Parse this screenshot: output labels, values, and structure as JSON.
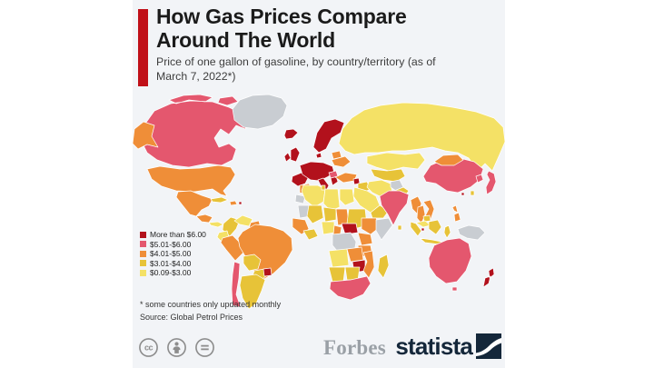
{
  "colors": {
    "page_bg": "#ffffff",
    "card_bg": "#f2f4f7",
    "accent_bar": "#c01018",
    "title_text": "#1b1b1b",
    "subtitle_text": "#3d3d3d",
    "forbes_gray": "#9aa0a6",
    "statista_navy": "#14273a",
    "cc_gray": "#8d8d8d"
  },
  "chart_data": {
    "type": "choropleth_map",
    "title": "How Gas Prices Compare Around The World",
    "subtitle": "Price of one gallon of gasoline, by country/territory (as of March 7, 2022*)",
    "unit": "USD per gallon of gasoline",
    "legend_position": "left-middle",
    "legend": [
      {
        "key": "gt6",
        "label": "More than $6.00",
        "color": "#b2111c"
      },
      {
        "key": "5to6",
        "label": "$5.01-$6.00",
        "color": "#e4576e"
      },
      {
        "key": "4to5",
        "label": "$4.01-$5.00",
        "color": "#ef8e38"
      },
      {
        "key": "3to4",
        "label": "$3.01-$4.00",
        "color": "#e7c338"
      },
      {
        "key": "0to3",
        "label": "$0.09-$3.00",
        "color": "#f4e166"
      }
    ],
    "no_data_color": "#c9cdd2",
    "ocean_color": "#f2f4f7",
    "regions": [
      {
        "id": "russia",
        "name": "Russia",
        "category": "0to3"
      },
      {
        "id": "kazakhstan",
        "name": "Kazakhstan",
        "category": "0to3"
      },
      {
        "id": "central-asia",
        "name": "Central Asia",
        "category": "3to4"
      },
      {
        "id": "canada",
        "name": "Canada",
        "category": "5to6"
      },
      {
        "id": "alaska",
        "name": "Alaska (US)",
        "category": "4to5"
      },
      {
        "id": "greenland",
        "name": "Greenland",
        "category": "nodata"
      },
      {
        "id": "iceland",
        "name": "Iceland",
        "category": "gt6"
      },
      {
        "id": "usa",
        "name": "United States",
        "category": "4to5"
      },
      {
        "id": "mexico",
        "name": "Mexico",
        "category": "4to5"
      },
      {
        "id": "guatemala-honduras",
        "name": "Guatemala / Honduras",
        "category": "4to5"
      },
      {
        "id": "panama",
        "name": "Panama / Costa Rica",
        "category": "0to3"
      },
      {
        "id": "cuba",
        "name": "Cuba",
        "category": "3to4"
      },
      {
        "id": "hispaniola",
        "name": "Hispaniola",
        "category": "4to5"
      },
      {
        "id": "caribbean",
        "name": "Lesser Antilles",
        "category": "gt6"
      },
      {
        "id": "colombia",
        "name": "Colombia",
        "category": "3to4"
      },
      {
        "id": "venezuela",
        "name": "Venezuela",
        "category": "0to3"
      },
      {
        "id": "guyanas",
        "name": "Guyanas",
        "category": "4to5"
      },
      {
        "id": "ecuador",
        "name": "Ecuador",
        "category": "0to3"
      },
      {
        "id": "peru",
        "name": "Peru",
        "category": "4to5"
      },
      {
        "id": "brazil",
        "name": "Brazil",
        "category": "4to5"
      },
      {
        "id": "bolivia",
        "name": "Bolivia",
        "category": "3to4"
      },
      {
        "id": "paraguay",
        "name": "Paraguay",
        "category": "3to4"
      },
      {
        "id": "chile",
        "name": "Chile",
        "category": "5to6"
      },
      {
        "id": "argentina",
        "name": "Argentina",
        "category": "3to4"
      },
      {
        "id": "uruguay",
        "name": "Uruguay",
        "category": "gt6"
      },
      {
        "id": "uk-ireland",
        "name": "United Kingdom / Ireland",
        "category": "gt6"
      },
      {
        "id": "scandinavia",
        "name": "Scandinavia",
        "category": "gt6"
      },
      {
        "id": "iberia",
        "name": "Spain / Portugal",
        "category": "gt6"
      },
      {
        "id": "central-europe",
        "name": "Western / Central Europe",
        "category": "gt6"
      },
      {
        "id": "italy",
        "name": "Italy",
        "category": "gt6"
      },
      {
        "id": "greece",
        "name": "Greece",
        "category": "gt6"
      },
      {
        "id": "balkans",
        "name": "Romania / Balkans",
        "category": "5to6"
      },
      {
        "id": "belarus",
        "name": "Belarus",
        "category": "4to5"
      },
      {
        "id": "ukraine",
        "name": "Ukraine",
        "category": "4to5"
      },
      {
        "id": "turkey",
        "name": "Turkey",
        "category": "4to5"
      },
      {
        "id": "syria",
        "name": "Syria",
        "category": "gt6"
      },
      {
        "id": "iraq",
        "name": "Iraq",
        "category": "3to4"
      },
      {
        "id": "saudi-arabia",
        "name": "Saudi Arabia",
        "category": "0to3"
      },
      {
        "id": "arabia-south",
        "name": "Yemen / Oman",
        "category": "3to4"
      },
      {
        "id": "iran",
        "name": "Iran",
        "category": "0to3"
      },
      {
        "id": "afghanistan",
        "name": "Afghanistan",
        "category": "nodata"
      },
      {
        "id": "pakistan",
        "name": "Pakistan",
        "category": "3to4"
      },
      {
        "id": "india",
        "name": "India",
        "category": "5to6"
      },
      {
        "id": "sri-lanka",
        "name": "Sri Lanka",
        "category": "3to4"
      },
      {
        "id": "china",
        "name": "China",
        "category": "5to6"
      },
      {
        "id": "mongolia",
        "name": "Mongolia",
        "category": "4to5"
      },
      {
        "id": "south-korea",
        "name": "South Korea",
        "category": "5to6"
      },
      {
        "id": "japan",
        "name": "Japan",
        "category": "5to6"
      },
      {
        "id": "taiwan",
        "name": "Taiwan",
        "category": "3to4"
      },
      {
        "id": "hong-kong",
        "name": "Hong Kong",
        "category": "gt6"
      },
      {
        "id": "myanmar",
        "name": "Myanmar",
        "category": "4to5"
      },
      {
        "id": "thailand",
        "name": "Thailand",
        "category": "4to5"
      },
      {
        "id": "vietnam",
        "name": "Vietnam",
        "category": "4to5"
      },
      {
        "id": "cambodia",
        "name": "Cambodia",
        "category": "3to4"
      },
      {
        "id": "malaysia",
        "name": "Malaysia",
        "category": "0to3"
      },
      {
        "id": "singapore",
        "name": "Singapore",
        "category": "gt6"
      },
      {
        "id": "sumatra",
        "name": "Indonesia (Sumatra)",
        "category": "3to4"
      },
      {
        "id": "borneo",
        "name": "Indonesia (Borneo)",
        "category": "3to4"
      },
      {
        "id": "java",
        "name": "Indonesia (Java)",
        "category": "3to4"
      },
      {
        "id": "sulawesi",
        "name": "Indonesia (Sulawesi)",
        "category": "3to4"
      },
      {
        "id": "philippines",
        "name": "Philippines",
        "category": "4to5"
      },
      {
        "id": "new-guinea",
        "name": "Papua New Guinea",
        "category": "nodata"
      },
      {
        "id": "australia",
        "name": "Australia",
        "category": "5to6"
      },
      {
        "id": "tasmania",
        "name": "Tasmania",
        "category": "5to6"
      },
      {
        "id": "new-zealand",
        "name": "New Zealand",
        "category": "gt6"
      },
      {
        "id": "morocco",
        "name": "Morocco",
        "category": "4to5"
      },
      {
        "id": "western-sahara",
        "name": "Western Sahara",
        "category": "nodata"
      },
      {
        "id": "algeria",
        "name": "Algeria",
        "category": "0to3"
      },
      {
        "id": "tunisia",
        "name": "Tunisia",
        "category": "3to4"
      },
      {
        "id": "libya",
        "name": "Libya",
        "category": "0to3"
      },
      {
        "id": "egypt",
        "name": "Egypt",
        "category": "0to3"
      },
      {
        "id": "mauritania",
        "name": "Mauritania",
        "category": "nodata"
      },
      {
        "id": "mali",
        "name": "Mali",
        "category": "3to4"
      },
      {
        "id": "niger",
        "name": "Niger",
        "category": "3to4"
      },
      {
        "id": "chad",
        "name": "Chad",
        "category": "4to5"
      },
      {
        "id": "sudan",
        "name": "Sudan",
        "category": "3to4"
      },
      {
        "id": "west-africa",
        "name": "West Africa",
        "category": "4to5"
      },
      {
        "id": "ghana-ivory-coast",
        "name": "Ghana / Ivory Coast",
        "category": "3to4"
      },
      {
        "id": "nigeria",
        "name": "Nigeria",
        "category": "0to3"
      },
      {
        "id": "cameroon",
        "name": "Cameroon",
        "category": "4to5"
      },
      {
        "id": "central-african-republic",
        "name": "Central African Republic",
        "category": "gt6"
      },
      {
        "id": "ethiopia",
        "name": "Ethiopia",
        "category": "4to5"
      },
      {
        "id": "somalia",
        "name": "Somalia",
        "category": "nodata"
      },
      {
        "id": "dr-congo",
        "name": "DR Congo",
        "category": "nodata"
      },
      {
        "id": "kenya-uganda",
        "name": "Kenya / Uganda",
        "category": "4to5"
      },
      {
        "id": "tanzania",
        "name": "Tanzania",
        "category": "4to5"
      },
      {
        "id": "angola",
        "name": "Angola",
        "category": "0to3"
      },
      {
        "id": "zambia",
        "name": "Zambia",
        "category": "4to5"
      },
      {
        "id": "zimbabwe",
        "name": "Zimbabwe",
        "category": "gt6"
      },
      {
        "id": "mozambique",
        "name": "Mozambique",
        "category": "4to5"
      },
      {
        "id": "namibia",
        "name": "Namibia",
        "category": "3to4"
      },
      {
        "id": "botswana",
        "name": "Botswana",
        "category": "3to4"
      },
      {
        "id": "south-africa",
        "name": "South Africa",
        "category": "5to6"
      },
      {
        "id": "madagascar",
        "name": "Madagascar",
        "category": "3to4"
      }
    ]
  },
  "footnote": "* some countries only updated monthly",
  "source": "Source: Global Petrol Prices",
  "footer": {
    "license_icons": [
      "cc",
      "attribution",
      "no-derivatives"
    ],
    "forbes_logo": "Forbes",
    "statista_logo": "statista"
  }
}
